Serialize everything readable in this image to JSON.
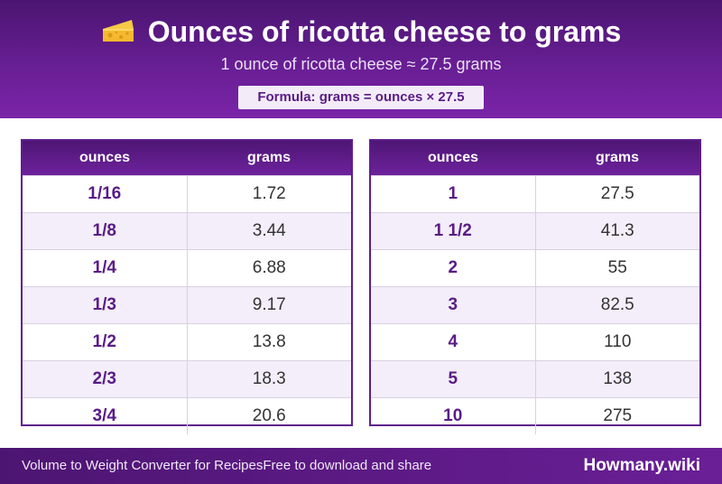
{
  "header": {
    "title": "Ounces of ricotta cheese to grams",
    "icon": "cheese-icon",
    "subtitle": "1 ounce of ricotta cheese ≈ 27.5 grams",
    "formula": "Formula: grams = ounces × 27.5"
  },
  "table_left": {
    "col_ounces": "ounces",
    "col_grams": "grams",
    "rows": [
      {
        "ounces": "1/16",
        "grams": "1.72"
      },
      {
        "ounces": "1/8",
        "grams": "3.44"
      },
      {
        "ounces": "1/4",
        "grams": "6.88"
      },
      {
        "ounces": "1/3",
        "grams": "9.17"
      },
      {
        "ounces": "1/2",
        "grams": "13.8"
      },
      {
        "ounces": "2/3",
        "grams": "18.3"
      },
      {
        "ounces": "3/4",
        "grams": "20.6"
      }
    ]
  },
  "table_right": {
    "col_ounces": "ounces",
    "col_grams": "grams",
    "rows": [
      {
        "ounces": "1",
        "grams": "27.5"
      },
      {
        "ounces": "1 1/2",
        "grams": "41.3"
      },
      {
        "ounces": "2",
        "grams": "55"
      },
      {
        "ounces": "3",
        "grams": "82.5"
      },
      {
        "ounces": "4",
        "grams": "110"
      },
      {
        "ounces": "5",
        "grams": "138"
      },
      {
        "ounces": "10",
        "grams": "275"
      }
    ]
  },
  "footer": {
    "left_text_1": "Volume to Weight Converter for Recipes",
    "left_text_2": "Free to download and share",
    "brand": "Howmany.wiki"
  },
  "colors": {
    "header_purple": "#5e1e8c",
    "accent_text": "#5a1b86",
    "row_alt": "#f3eef9"
  }
}
